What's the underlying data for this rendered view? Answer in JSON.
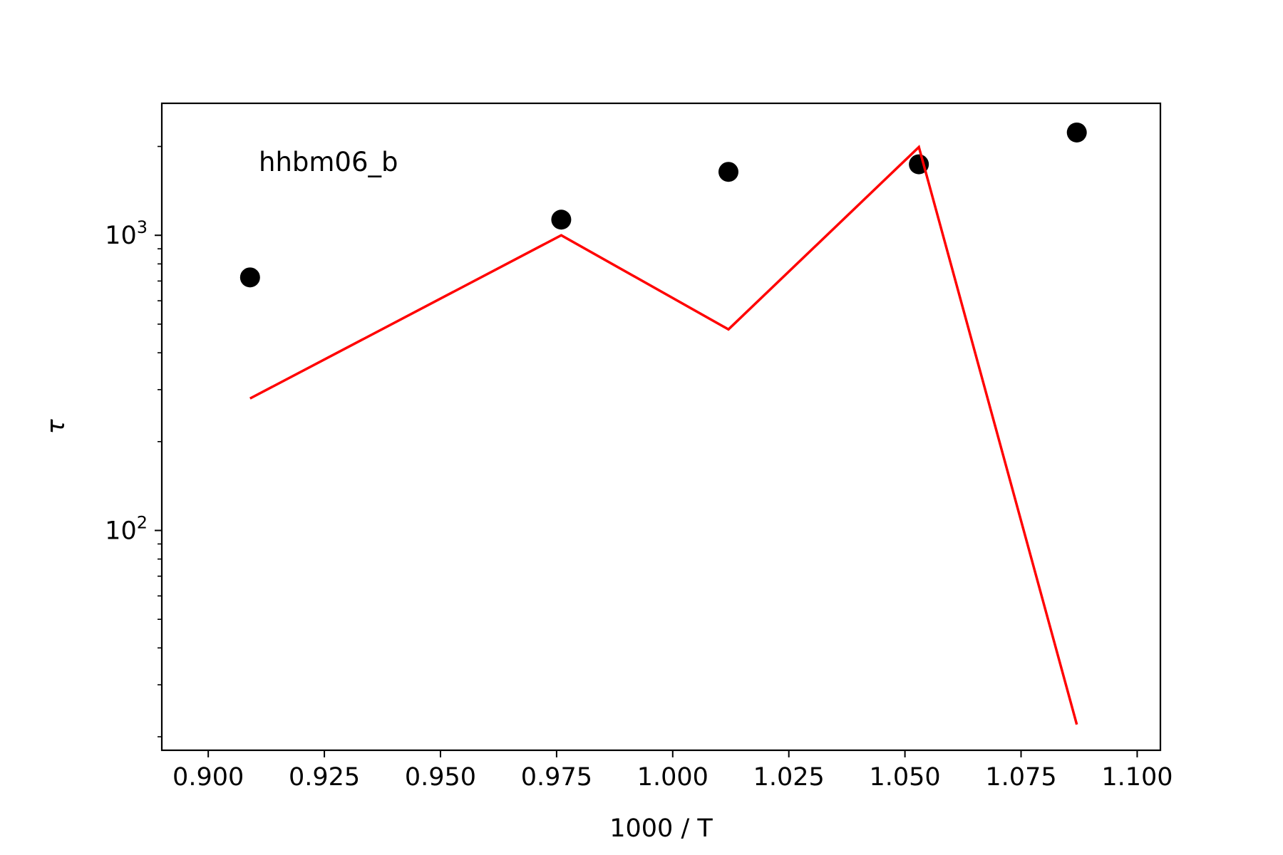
{
  "chart_data": {
    "type": "scatter",
    "annotation": "hhbm06_b",
    "xlabel": "1000 / T",
    "ylabel": "τ",
    "xlim": [
      0.89,
      1.105
    ],
    "ylim": [
      18,
      2800
    ],
    "yscale": "log",
    "grid": false,
    "x_ticks": [
      0.9,
      0.925,
      0.95,
      0.975,
      1.0,
      1.025,
      1.05,
      1.075,
      1.1
    ],
    "x_tick_labels": [
      "0.900",
      "0.925",
      "0.950",
      "0.975",
      "1.000",
      "1.025",
      "1.050",
      "1.075",
      "1.100"
    ],
    "y_major_ticks": [
      {
        "value": 100,
        "base": "10",
        "exp": "2"
      },
      {
        "value": 1000,
        "base": "10",
        "exp": "3"
      }
    ],
    "y_minor_ticks": [
      20,
      30,
      40,
      50,
      60,
      70,
      80,
      90,
      200,
      300,
      400,
      500,
      600,
      700,
      800,
      900,
      2000
    ],
    "series": [
      {
        "kind": "points",
        "color": "#000000",
        "x": [
          0.909,
          0.976,
          1.012,
          1.053,
          1.087
        ],
        "y": [
          720,
          1130,
          1640,
          1740,
          2230
        ]
      },
      {
        "kind": "line",
        "color": "#ff0000",
        "x": [
          0.909,
          0.976,
          1.012,
          1.053,
          1.087
        ],
        "y": [
          280,
          1000,
          480,
          1990,
          22
        ]
      }
    ]
  }
}
